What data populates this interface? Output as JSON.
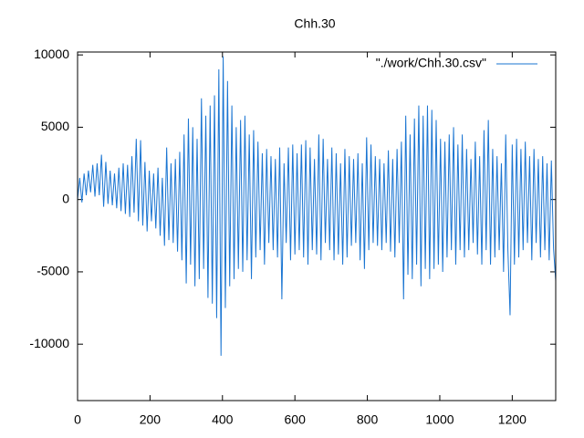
{
  "chart_data": {
    "type": "line",
    "title": "Chh.30",
    "x": [
      0,
      6,
      12,
      18,
      24,
      30,
      36,
      42,
      48,
      54,
      60,
      66,
      72,
      78,
      84,
      90,
      96,
      102,
      108,
      114,
      120,
      126,
      132,
      138,
      144,
      150,
      156,
      162,
      168,
      174,
      180,
      186,
      192,
      198,
      204,
      210,
      216,
      222,
      228,
      234,
      240,
      246,
      252,
      258,
      264,
      270,
      276,
      282,
      288,
      294,
      300,
      306,
      312,
      318,
      324,
      330,
      336,
      342,
      348,
      354,
      360,
      366,
      372,
      378,
      384,
      390,
      396,
      402,
      408,
      414,
      420,
      426,
      432,
      438,
      444,
      450,
      456,
      462,
      468,
      474,
      480,
      486,
      492,
      498,
      504,
      510,
      516,
      522,
      528,
      534,
      540,
      546,
      552,
      558,
      564,
      570,
      576,
      582,
      588,
      594,
      600,
      606,
      612,
      618,
      624,
      630,
      636,
      642,
      648,
      654,
      660,
      666,
      672,
      678,
      684,
      690,
      696,
      702,
      708,
      714,
      720,
      726,
      732,
      738,
      744,
      750,
      756,
      762,
      768,
      774,
      780,
      786,
      792,
      798,
      804,
      810,
      816,
      822,
      828,
      834,
      840,
      846,
      852,
      858,
      864,
      870,
      876,
      882,
      888,
      894,
      900,
      906,
      912,
      918,
      924,
      930,
      936,
      942,
      948,
      954,
      960,
      966,
      972,
      978,
      984,
      990,
      996,
      1002,
      1008,
      1014,
      1020,
      1026,
      1032,
      1038,
      1044,
      1050,
      1056,
      1062,
      1068,
      1074,
      1080,
      1086,
      1092,
      1098,
      1104,
      1110,
      1116,
      1122,
      1128,
      1134,
      1140,
      1146,
      1152,
      1158,
      1164,
      1170,
      1176,
      1182,
      1188,
      1194,
      1200,
      1206,
      1212,
      1218,
      1224,
      1230,
      1236,
      1242,
      1248,
      1254,
      1260,
      1266,
      1272,
      1278,
      1284,
      1290,
      1296,
      1302,
      1308,
      1314,
      1320
    ],
    "series": [
      {
        "name": "\"./work/Chh.30.csv\"",
        "color": "#1a75d2",
        "values": [
          0,
          1500,
          -200,
          1800,
          300,
          2000,
          500,
          2400,
          200,
          2500,
          300,
          3100,
          -500,
          2600,
          -300,
          2000,
          -400,
          1800,
          -600,
          2200,
          -800,
          2500,
          -1000,
          2400,
          -1200,
          3000,
          -900,
          4200,
          -1500,
          4100,
          -1800,
          2600,
          -2200,
          2000,
          -1500,
          1800,
          -2000,
          2200,
          -2500,
          1500,
          -3200,
          3600,
          -2800,
          2500,
          -3000,
          2800,
          -3600,
          3300,
          -4200,
          4500,
          -5800,
          5600,
          -4500,
          5000,
          -6000,
          4200,
          -5500,
          7000,
          -4800,
          5800,
          -6800,
          6500,
          -7200,
          7200,
          -8200,
          9000,
          -10800,
          9900,
          -7500,
          8200,
          -6000,
          6500,
          -5500,
          5000,
          -4800,
          5500,
          -5000,
          5800,
          -4200,
          4500,
          -5500,
          4800,
          -4000,
          4000,
          -3500,
          3200,
          -4500,
          3500,
          -3000,
          3000,
          -3500,
          2800,
          -4000,
          3600,
          -6900,
          2500,
          -3000,
          3600,
          -4200,
          3800,
          -3800,
          3200,
          -3500,
          3800,
          -4000,
          4100,
          -4500,
          3600,
          -3500,
          2800,
          -3800,
          4500,
          -4200,
          4200,
          -3000,
          2800,
          -3500,
          3600,
          -4200,
          3200,
          -3800,
          2500,
          -4500,
          3500,
          -4000,
          3000,
          -3200,
          2800,
          -3000,
          3200,
          -4200,
          2500,
          -4800,
          4300,
          -3500,
          3800,
          -3000,
          3000,
          -3200,
          2800,
          -3500,
          2500,
          -3000,
          3400,
          -3600,
          2800,
          -4000,
          3500,
          -3000,
          4000,
          -6900,
          5800,
          -5200,
          4500,
          -5500,
          5600,
          -4500,
          6500,
          -6000,
          5800,
          -4800,
          6500,
          -5500,
          6200,
          -4800,
          5500,
          -4500,
          4200,
          -5000,
          4000,
          -4000,
          4500,
          -3500,
          5000,
          -4500,
          3800,
          -3500,
          4500,
          -4000,
          3500,
          -3500,
          2800,
          -3000,
          4000,
          -3800,
          3000,
          -4500,
          4800,
          -3500,
          5500,
          -4500,
          3500,
          -4000,
          3000,
          -3500,
          2500,
          -5000,
          4500,
          -3500,
          -8000,
          3800,
          -4500,
          4200,
          -4000,
          3500,
          -3500,
          4000,
          -3000,
          3000,
          -4200,
          3500,
          -3000,
          2800,
          -4000,
          3000,
          -3500,
          2500,
          -4200,
          2700,
          -3400,
          -5600
        ]
      }
    ],
    "xlim": [
      0,
      1320
    ],
    "xticks": [
      0,
      200,
      400,
      600,
      800,
      1000,
      1200
    ],
    "ylim": [
      -13900,
      10200
    ],
    "yticks": [
      -10000,
      -5000,
      0,
      5000,
      10000
    ],
    "legend": "top-right"
  }
}
